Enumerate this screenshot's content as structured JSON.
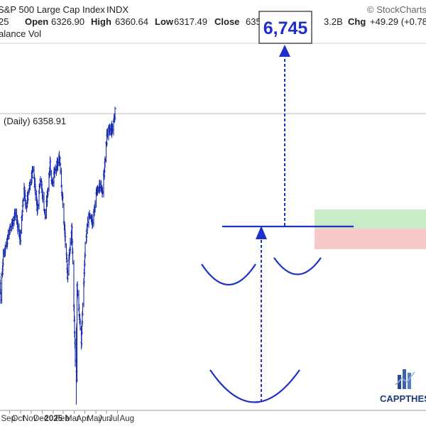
{
  "header": {
    "title": "S&P 500 Large Cap Index",
    "exchange": "INDX",
    "left_cut": "25",
    "open_label": "Open",
    "open_value": "6326.90",
    "high_label": "High",
    "high_value": "6360.64",
    "low_label": "Low",
    "low_value": "6317.49",
    "close_label": "Close",
    "close_value": "635",
    "volume_tail": "3.2B",
    "chg_label": "Chg",
    "chg_value": "+49.29 (+0.78",
    "source": "© StockCharts",
    "indicator": "alance Vol"
  },
  "price_label": "(Daily) 6358.91",
  "target_label": "6,745",
  "logo_text": "CAPPTHES",
  "colors": {
    "bars": "#1a2fb0",
    "annotation": "#1f30c8",
    "green_zone": "#c8ecc5",
    "red_zone": "#f6c8c8",
    "grid": "#d8d8d8"
  },
  "chart_data": {
    "type": "ohlc",
    "title": "S&P 500 Large Cap Index",
    "x_axis": [
      "Sep",
      "Oct",
      "Nov",
      "Dec",
      "2025",
      "Feb",
      "Mar",
      "Apr",
      "May",
      "Jun",
      "Jul",
      "Aug"
    ],
    "y_range": [
      4800,
      6500
    ],
    "anchors": [
      [
        "2024-08-19",
        5600
      ],
      [
        "2024-08-30",
        5630
      ],
      [
        "2024-09-06",
        5410
      ],
      [
        "2024-09-13",
        5620
      ],
      [
        "2024-09-30",
        5760
      ],
      [
        "2024-10-18",
        5850
      ],
      [
        "2024-10-31",
        5710
      ],
      [
        "2024-11-11",
        6000
      ],
      [
        "2024-11-15",
        5870
      ],
      [
        "2024-12-06",
        6090
      ],
      [
        "2024-12-18",
        5870
      ],
      [
        "2024-12-26",
        6040
      ],
      [
        "2025-01-10",
        5830
      ],
      [
        "2025-01-23",
        6120
      ],
      [
        "2025-01-27",
        6010
      ],
      [
        "2025-02-19",
        6144
      ],
      [
        "2025-03-04",
        5780
      ],
      [
        "2025-03-13",
        5520
      ],
      [
        "2025-03-25",
        5780
      ],
      [
        "2025-04-04",
        5074
      ],
      [
        "2025-04-08",
        4982
      ],
      [
        "2025-04-09",
        5456
      ],
      [
        "2025-04-21",
        5158
      ],
      [
        "2025-05-02",
        5686
      ],
      [
        "2025-05-12",
        5845
      ],
      [
        "2025-05-23",
        5802
      ],
      [
        "2025-06-06",
        6000
      ],
      [
        "2025-06-20",
        5967
      ],
      [
        "2025-07-03",
        6279
      ],
      [
        "2025-07-18",
        6297
      ],
      [
        "2025-07-25",
        6388
      ]
    ],
    "last_close": 6358.91,
    "breakout_level": 5780,
    "target": 6745,
    "support_zone": [
      5580,
      5780
    ],
    "target_zone": [
      5780,
      5960
    ]
  }
}
